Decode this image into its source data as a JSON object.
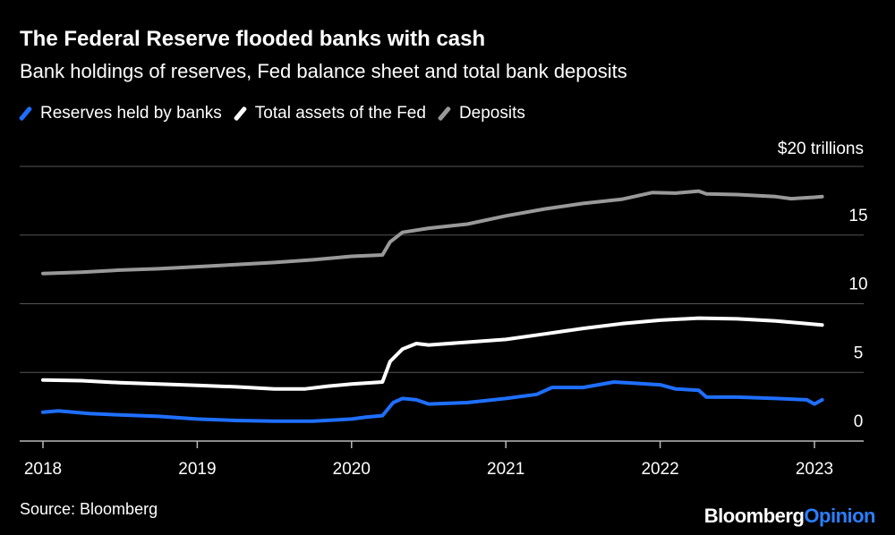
{
  "brand": {
    "part1": "Bloomberg",
    "part2": "Opinion",
    "accent": "#2a7fff"
  },
  "source": "Source: Bloomberg",
  "chart_data": {
    "type": "line",
    "title": "The Federal Reserve flooded banks with cash",
    "subtitle": "Bank holdings of reserves, Fed balance sheet and total bank deposits",
    "unit_label": "$20 trillions",
    "y_ticks": [
      "0",
      "5",
      "10",
      "15"
    ],
    "x_ticks": [
      "2018",
      "2019",
      "2020",
      "2021",
      "2022",
      "2023"
    ],
    "xlim": [
      2018,
      2023.25
    ],
    "ylim": [
      0,
      20
    ],
    "grid": true,
    "legend_position": "top-left",
    "series": [
      {
        "name": "Reserves held by banks",
        "color": "#1f6fff",
        "points": [
          [
            2018.0,
            2.1
          ],
          [
            2018.1,
            2.2
          ],
          [
            2018.3,
            2.0
          ],
          [
            2018.5,
            1.9
          ],
          [
            2018.75,
            1.8
          ],
          [
            2019.0,
            1.6
          ],
          [
            2019.25,
            1.5
          ],
          [
            2019.5,
            1.45
          ],
          [
            2019.75,
            1.45
          ],
          [
            2020.0,
            1.6
          ],
          [
            2020.1,
            1.75
          ],
          [
            2020.2,
            1.85
          ],
          [
            2020.27,
            2.8
          ],
          [
            2020.33,
            3.1
          ],
          [
            2020.42,
            3.0
          ],
          [
            2020.5,
            2.7
          ],
          [
            2020.75,
            2.8
          ],
          [
            2021.0,
            3.1
          ],
          [
            2021.2,
            3.4
          ],
          [
            2021.3,
            3.9
          ],
          [
            2021.5,
            3.9
          ],
          [
            2021.7,
            4.3
          ],
          [
            2021.85,
            4.2
          ],
          [
            2022.0,
            4.1
          ],
          [
            2022.1,
            3.8
          ],
          [
            2022.25,
            3.7
          ],
          [
            2022.3,
            3.2
          ],
          [
            2022.5,
            3.2
          ],
          [
            2022.75,
            3.1
          ],
          [
            2022.95,
            3.0
          ],
          [
            2023.0,
            2.7
          ],
          [
            2023.05,
            3.0
          ]
        ]
      },
      {
        "name": "Total assets of the Fed",
        "color": "#ffffff",
        "points": [
          [
            2018.0,
            4.45
          ],
          [
            2018.25,
            4.4
          ],
          [
            2018.5,
            4.25
          ],
          [
            2018.75,
            4.15
          ],
          [
            2019.0,
            4.05
          ],
          [
            2019.25,
            3.95
          ],
          [
            2019.5,
            3.8
          ],
          [
            2019.7,
            3.8
          ],
          [
            2019.85,
            4.0
          ],
          [
            2020.0,
            4.15
          ],
          [
            2020.2,
            4.3
          ],
          [
            2020.25,
            5.8
          ],
          [
            2020.33,
            6.7
          ],
          [
            2020.42,
            7.1
          ],
          [
            2020.5,
            7.0
          ],
          [
            2020.75,
            7.2
          ],
          [
            2021.0,
            7.4
          ],
          [
            2021.25,
            7.8
          ],
          [
            2021.5,
            8.2
          ],
          [
            2021.75,
            8.55
          ],
          [
            2022.0,
            8.8
          ],
          [
            2022.25,
            8.95
          ],
          [
            2022.5,
            8.9
          ],
          [
            2022.75,
            8.75
          ],
          [
            2023.0,
            8.5
          ],
          [
            2023.05,
            8.45
          ]
        ]
      },
      {
        "name": "Deposits",
        "color": "#999999",
        "points": [
          [
            2018.0,
            12.2
          ],
          [
            2018.25,
            12.3
          ],
          [
            2018.5,
            12.45
          ],
          [
            2018.75,
            12.55
          ],
          [
            2019.0,
            12.7
          ],
          [
            2019.25,
            12.85
          ],
          [
            2019.5,
            13.0
          ],
          [
            2019.75,
            13.2
          ],
          [
            2020.0,
            13.45
          ],
          [
            2020.2,
            13.55
          ],
          [
            2020.25,
            14.5
          ],
          [
            2020.33,
            15.2
          ],
          [
            2020.5,
            15.5
          ],
          [
            2020.75,
            15.8
          ],
          [
            2021.0,
            16.4
          ],
          [
            2021.25,
            16.9
          ],
          [
            2021.5,
            17.3
          ],
          [
            2021.75,
            17.6
          ],
          [
            2021.95,
            18.1
          ],
          [
            2022.1,
            18.05
          ],
          [
            2022.25,
            18.2
          ],
          [
            2022.3,
            18.0
          ],
          [
            2022.5,
            17.95
          ],
          [
            2022.75,
            17.8
          ],
          [
            2022.85,
            17.65
          ],
          [
            2023.0,
            17.75
          ],
          [
            2023.05,
            17.8
          ]
        ]
      }
    ]
  }
}
